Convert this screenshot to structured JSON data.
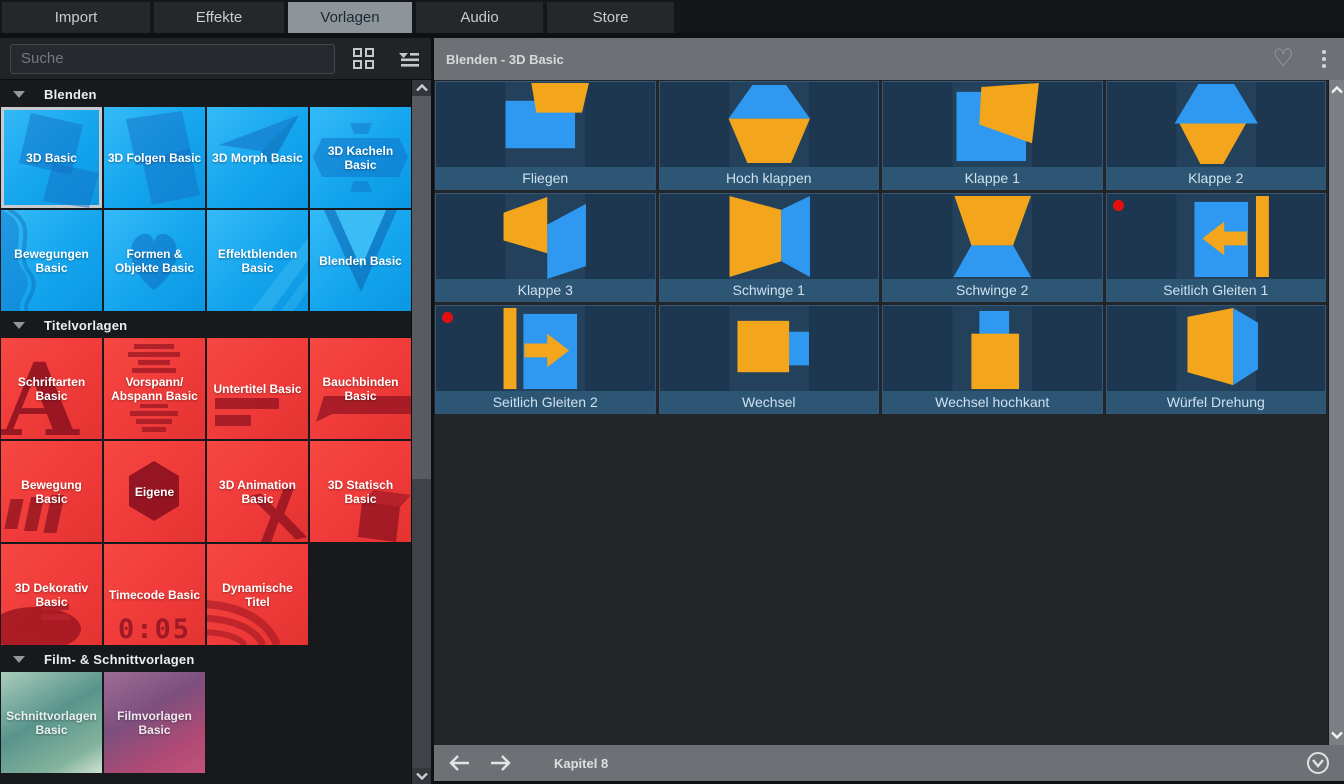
{
  "tabs": [
    {
      "label": "Import",
      "active": false
    },
    {
      "label": "Effekte",
      "active": false
    },
    {
      "label": "Vorlagen",
      "active": true
    },
    {
      "label": "Audio",
      "active": false
    },
    {
      "label": "Store",
      "active": false
    }
  ],
  "left_panel": {
    "search_placeholder": "Suche",
    "icons": [
      "grid-view-icon",
      "list-view-icon"
    ],
    "sections": [
      {
        "label": "Blenden",
        "expanded": true,
        "tiles": [
          {
            "label": "3D Basic",
            "theme": "blue",
            "deco": "squares-a",
            "selected": true
          },
          {
            "label": "3D Folgen Basic",
            "theme": "blue",
            "deco": "squares-b",
            "selected": false
          },
          {
            "label": "3D Morph Basic",
            "theme": "blue",
            "deco": "plane",
            "selected": false
          },
          {
            "label": "3D Kacheln Basic",
            "theme": "blue",
            "deco": "banner",
            "selected": false
          },
          {
            "label": "Bewegungen Basic",
            "theme": "blue",
            "deco": "wave",
            "selected": false
          },
          {
            "label": "Formen & Objekte Basic",
            "theme": "blue",
            "deco": "heart",
            "selected": false
          },
          {
            "label": "Effektblenden Basic",
            "theme": "blue",
            "deco": "stripes",
            "selected": false
          },
          {
            "label": "Blenden Basic",
            "theme": "blue",
            "deco": "vee",
            "selected": false
          }
        ]
      },
      {
        "label": "Titelvorlagen",
        "expanded": true,
        "tiles": [
          {
            "label": "Schriftarten Basic",
            "theme": "red",
            "deco": "letter-a",
            "selected": false
          },
          {
            "label": "Vorspann/ Abspann Basic",
            "theme": "red",
            "deco": "credit-lines",
            "selected": false
          },
          {
            "label": "Untertitel Basic",
            "theme": "red",
            "deco": "subtitle-bars",
            "selected": false
          },
          {
            "label": "Bauchbinden Basic",
            "theme": "red",
            "deco": "ribbon",
            "selected": false
          },
          {
            "label": "Bewegung Basic",
            "theme": "red",
            "deco": "motion-bars",
            "selected": false
          },
          {
            "label": "Eigene",
            "theme": "red",
            "deco": "hexagon",
            "selected": false
          },
          {
            "label": "3D Animation Basic",
            "theme": "red",
            "deco": "x-3d",
            "selected": false
          },
          {
            "label": "3D Statisch Basic",
            "theme": "red",
            "deco": "cube-red",
            "selected": false
          },
          {
            "label": "3D Dekorativ Basic",
            "theme": "red",
            "deco": "disc",
            "selected": false
          },
          {
            "label": "Timecode Basic",
            "theme": "red",
            "deco": "timecode",
            "overlay_text": "0:05",
            "selected": false
          },
          {
            "label": "Dynamische Titel",
            "theme": "red",
            "deco": "swirl",
            "selected": false
          }
        ]
      },
      {
        "label": "Film- & Schnittvorlagen",
        "expanded": true,
        "tiles": [
          {
            "label": "Schnittvorlagen Basic",
            "theme": "photo-teal",
            "deco": "none",
            "selected": false
          },
          {
            "label": "Filmvorlagen Basic",
            "theme": "photo-purple",
            "deco": "none",
            "selected": false
          }
        ]
      }
    ]
  },
  "right_panel": {
    "title": "Blenden - 3D Basic",
    "header_icons": [
      "favorite-heart-icon",
      "kebab-menu-icon"
    ],
    "tiles": [
      {
        "label": "Fliegen",
        "shape": "fliegen",
        "marker": false
      },
      {
        "label": "Hoch klappen",
        "shape": "hoch-klappen",
        "marker": false
      },
      {
        "label": "Klappe 1",
        "shape": "klappe-1",
        "marker": false
      },
      {
        "label": "Klappe 2",
        "shape": "klappe-2",
        "marker": false
      },
      {
        "label": "Klappe 3",
        "shape": "klappe-3",
        "marker": false
      },
      {
        "label": "Schwinge 1",
        "shape": "schwinge-1",
        "marker": false
      },
      {
        "label": "Schwinge 2",
        "shape": "schwinge-2",
        "marker": false
      },
      {
        "label": "Seitlich Gleiten 1",
        "shape": "seitlich-gleiten-1",
        "marker": true
      },
      {
        "label": "Seitlich Gleiten 2",
        "shape": "seitlich-gleiten-2",
        "marker": true
      },
      {
        "label": "Wechsel",
        "shape": "wechsel",
        "marker": false
      },
      {
        "label": "Wechsel hochkant",
        "shape": "wechsel-hochkant",
        "marker": false
      },
      {
        "label": "Würfel Drehung",
        "shape": "wuerfel-drehung",
        "marker": false
      }
    ],
    "footer": {
      "label": "Kapitel 8"
    }
  },
  "colors": {
    "preview_blue": "#2f98f1",
    "preview_orange": "#f3a51c",
    "preview_bg": "#1d3750",
    "preview_band": "#24415c",
    "caption_bg": "#2d5675",
    "marker_red": "#e60f0f",
    "tile_blue": "#14a5ee",
    "tile_red": "#ee3a39",
    "active_tab": "#8d959b"
  }
}
